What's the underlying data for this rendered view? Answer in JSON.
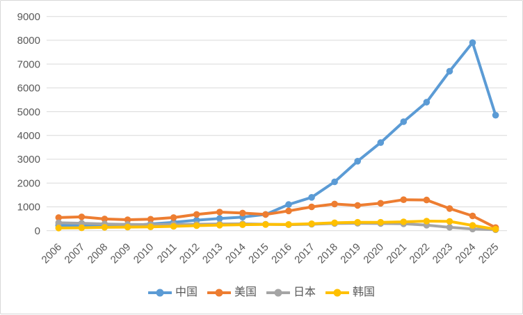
{
  "chart_data": {
    "type": "line",
    "title": "",
    "xlabel": "",
    "ylabel": "",
    "categories": [
      "2006",
      "2007",
      "2008",
      "2009",
      "2010",
      "2011",
      "2012",
      "2013",
      "2014",
      "2015",
      "2016",
      "2017",
      "2018",
      "2019",
      "2020",
      "2021",
      "2022",
      "2023",
      "2024",
      "2025"
    ],
    "series": [
      {
        "name": "中国",
        "color": "#5B9BD5",
        "values": [
          220,
          210,
          200,
          200,
          280,
          350,
          440,
          510,
          570,
          680,
          1100,
          1400,
          2050,
          2920,
          3700,
          4580,
          5400,
          6700,
          7900,
          4850
        ]
      },
      {
        "name": "美国",
        "color": "#ED7D31",
        "values": [
          550,
          580,
          490,
          460,
          480,
          550,
          680,
          780,
          740,
          680,
          830,
          1000,
          1120,
          1060,
          1150,
          1300,
          1290,
          930,
          620,
          130
        ]
      },
      {
        "name": "日本",
        "color": "#A5A5A5",
        "values": [
          330,
          310,
          280,
          260,
          255,
          260,
          270,
          280,
          285,
          270,
          250,
          270,
          300,
          310,
          300,
          290,
          230,
          140,
          70,
          40
        ]
      },
      {
        "name": "韩国",
        "color": "#FFC000",
        "values": [
          110,
          120,
          140,
          150,
          160,
          180,
          210,
          230,
          250,
          260,
          260,
          290,
          330,
          350,
          350,
          370,
          400,
          390,
          220,
          60
        ]
      }
    ],
    "ylim": [
      0,
      9000
    ],
    "y_ticks": [
      0,
      1000,
      2000,
      3000,
      4000,
      5000,
      6000,
      7000,
      8000,
      9000
    ],
    "grid": true,
    "legend_position": "bottom",
    "x_tick_rotation_deg": 45
  },
  "style": {
    "grid_color": "#d9d9d9",
    "axis_text_color": "#595959",
    "background": "#ffffff",
    "border_color": "#d7d7d7"
  }
}
